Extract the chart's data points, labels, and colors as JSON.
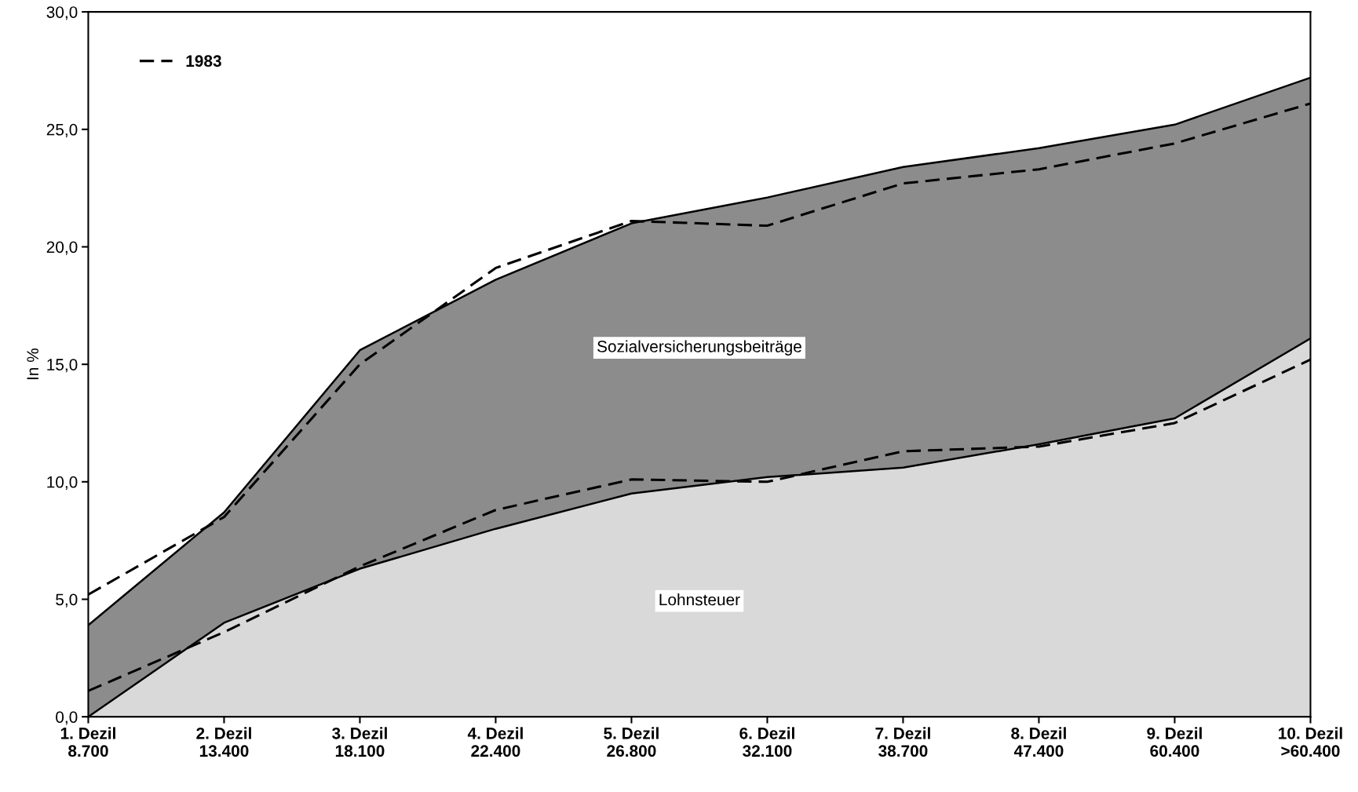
{
  "chart_data": {
    "type": "area",
    "stacked": true,
    "ylabel": "In %",
    "categories": [
      "1. Dezil\n8.700",
      "2. Dezil\n13.400",
      "3. Dezil\n18.100",
      "4. Dezil\n22.400",
      "5. Dezil\n26.800",
      "6. Dezil\n32.100",
      "7. Dezil\n38.700",
      "8. Dezil\n47.400",
      "9. Dezil\n60.400",
      "10. Dezil\n>60.400"
    ],
    "series": [
      {
        "name": "Lohnsteuer",
        "color": "#d9d9d9",
        "values": [
          0.0,
          4.0,
          6.3,
          8.0,
          9.5,
          10.2,
          10.6,
          11.6,
          12.7,
          16.1
        ]
      },
      {
        "name": "Sozialversicherungsbeiträge",
        "color": "#8c8c8c",
        "values": [
          3.9,
          4.7,
          9.3,
          10.6,
          11.5,
          11.9,
          12.8,
          12.6,
          12.5,
          11.1
        ]
      },
      {
        "name": "1983",
        "type": "line",
        "color": "#000000",
        "line_style": "dashed",
        "values": [
          1.1,
          3.6,
          6.4,
          8.8,
          10.1,
          10.0,
          11.3,
          11.5,
          12.5,
          15.2
        ]
      },
      {
        "type": "line",
        "color": "#000000",
        "line_style": "dashed",
        "values": [
          5.2,
          8.5,
          15.0,
          19.1,
          21.1,
          20.9,
          22.7,
          23.3,
          24.4,
          26.1
        ]
      }
    ],
    "ylim": [
      0,
      30
    ],
    "yticks": [
      {
        "value": 0,
        "label": "0,0"
      },
      {
        "value": 5,
        "label": "5,0"
      },
      {
        "value": 10,
        "label": "10,0"
      },
      {
        "value": 15,
        "label": "15,0"
      },
      {
        "value": 20,
        "label": "20,0"
      },
      {
        "value": 25,
        "label": "25,0"
      },
      {
        "value": 30,
        "label": "30,0"
      }
    ],
    "grid": false,
    "legend": "top left"
  }
}
